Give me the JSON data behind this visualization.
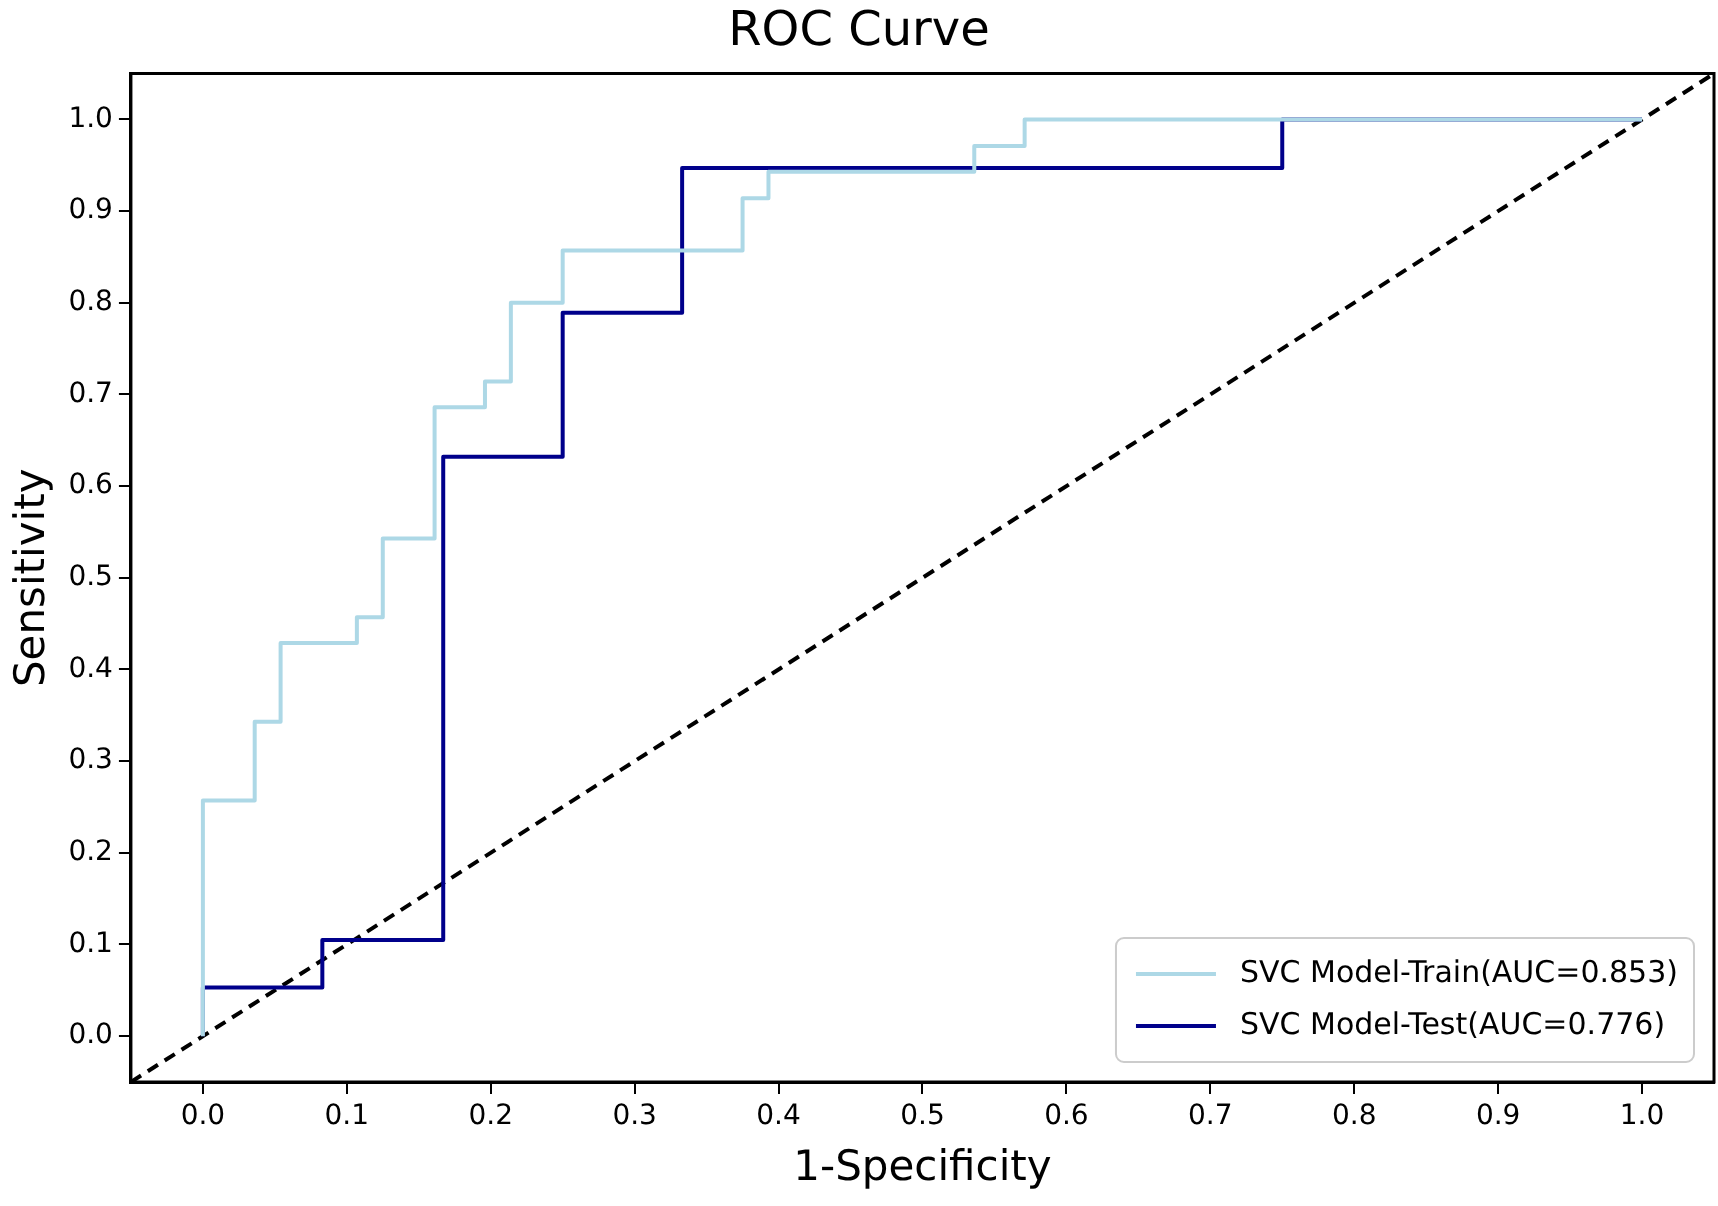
{
  "chart_data": {
    "type": "line",
    "title": "ROC Curve",
    "xlabel": "1-Specificity",
    "ylabel": "Sensitivity",
    "xlim": [
      -0.05,
      1.05
    ],
    "ylim": [
      -0.05,
      1.05
    ],
    "xticks": [
      {
        "value": 0,
        "label": "0.0"
      },
      0.1,
      0.2,
      0.3,
      0.4,
      0.5,
      0.6,
      0.7,
      0.8,
      0.9,
      {
        "value": 1,
        "label": "1.0"
      }
    ],
    "yticks": [
      {
        "value": 0,
        "label": "0.0"
      },
      0.1,
      0.2,
      0.3,
      0.4,
      0.5,
      0.6,
      0.7,
      0.8,
      0.9,
      {
        "value": 1,
        "label": "1.0"
      }
    ],
    "grid": false,
    "legend": "bottom right",
    "marker": "none",
    "series": [
      {
        "name": "SVC Model-Train(AUC=0.853)",
        "color": "#add8e6",
        "x": [
          0,
          0,
          0.036,
          0.036,
          0.054,
          0.054,
          0.107,
          0.107,
          0.125,
          0.125,
          0.161,
          0.161,
          0.196,
          0.196,
          0.214,
          0.214,
          0.25,
          0.25,
          0.375,
          0.375,
          0.393,
          0.393,
          0.536,
          0.536,
          0.571,
          0.571,
          1
        ],
        "values": [
          0,
          0.257,
          0.257,
          0.343,
          0.343,
          0.429,
          0.429,
          0.457,
          0.457,
          0.543,
          0.543,
          0.686,
          0.686,
          0.714,
          0.714,
          0.8,
          0.8,
          0.857,
          0.857,
          0.914,
          0.914,
          0.943,
          0.943,
          0.971,
          0.971,
          1,
          1
        ]
      },
      {
        "name": "SVC Model-Test(AUC=0.776)",
        "color": "#00008b",
        "x": [
          0,
          0,
          0.083,
          0.083,
          0.167,
          0.167,
          0.25,
          0.25,
          0.333,
          0.333,
          0.75,
          0.75,
          1
        ],
        "values": [
          0,
          0.053,
          0.053,
          0.105,
          0.105,
          0.632,
          0.632,
          0.789,
          0.789,
          0.947,
          0.947,
          1,
          1
        ]
      },
      {
        "color": "#000000",
        "line_style": "dashed",
        "x": [
          -0.05,
          1.05
        ],
        "values": [
          -0.05,
          1.05
        ]
      }
    ]
  }
}
